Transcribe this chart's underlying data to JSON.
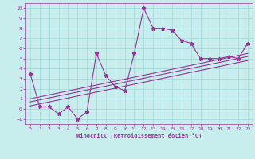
{
  "xlabel": "Windchill (Refroidissement éolien,°C)",
  "xlim": [
    -0.5,
    23.5
  ],
  "ylim": [
    -1.5,
    10.5
  ],
  "yticks": [
    -1,
    0,
    1,
    2,
    3,
    4,
    5,
    6,
    7,
    8,
    9,
    10
  ],
  "xticks": [
    0,
    1,
    2,
    3,
    4,
    5,
    6,
    7,
    8,
    9,
    10,
    11,
    12,
    13,
    14,
    15,
    16,
    17,
    18,
    19,
    20,
    21,
    22,
    23
  ],
  "bg_color": "#c8eded",
  "grid_color": "#a0d8d8",
  "line_color": "#993399",
  "line1_x": [
    0,
    1,
    2,
    3,
    4,
    5,
    6,
    7,
    8,
    9,
    10,
    11,
    12,
    13,
    14,
    15,
    16,
    17,
    18,
    19,
    20,
    21,
    22,
    23
  ],
  "line1_y": [
    3.5,
    0.2,
    0.2,
    -0.5,
    0.2,
    -1.0,
    -0.3,
    5.5,
    3.3,
    2.2,
    1.8,
    5.5,
    10.0,
    8.0,
    8.0,
    7.8,
    6.8,
    6.5,
    5.0,
    5.0,
    5.0,
    5.2,
    5.0,
    6.5
  ],
  "line2_x": [
    0,
    23
  ],
  "line2_y": [
    0.3,
    4.8
  ],
  "line3_x": [
    0,
    23
  ],
  "line3_y": [
    0.7,
    5.2
  ],
  "line4_x": [
    0,
    23
  ],
  "line4_y": [
    1.0,
    5.5
  ]
}
